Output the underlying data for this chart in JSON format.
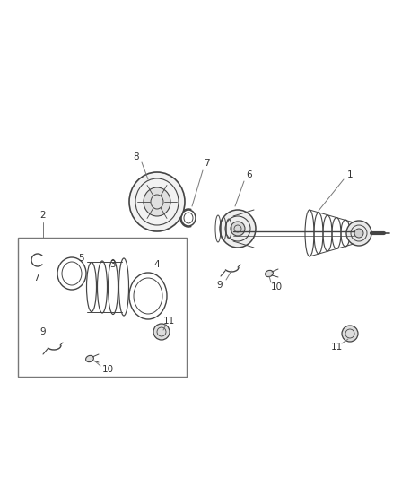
{
  "bg_color": "#ffffff",
  "line_color": "#444444",
  "label_color": "#444444",
  "fig_width": 4.38,
  "fig_height": 5.33,
  "dpi": 100
}
